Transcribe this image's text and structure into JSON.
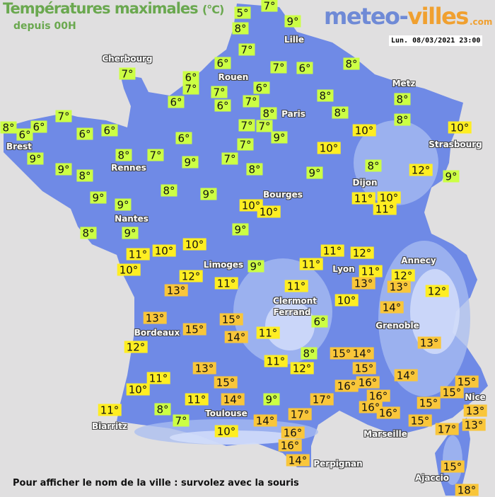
{
  "header": {
    "title": "Températures maximales",
    "title_unit": "(°C)",
    "subtitle": "depuis 00H",
    "logo_main": "meteo-",
    "logo_accent": "villes",
    "logo_tld": ".com",
    "datetime": "Lun. 08/03/2021 23:00"
  },
  "footer": "Pour afficher le nom de la ville : survolez avec la souris",
  "colors": {
    "sea": "#e0dfe0",
    "land": "#6f8ae6",
    "cold": "#ccff44",
    "mild": "#ffee22",
    "warm": "#f9c63a"
  },
  "cities": [
    "Cherbourg",
    "Lille",
    "Rouen",
    "Paris",
    "Metz",
    "Strasbourg",
    "Brest",
    "Rennes",
    "Nantes",
    "Dijon",
    "Bourges",
    "Limoges",
    "Lyon",
    "Annecy",
    "Clermont",
    "Ferrand",
    "Grenoble",
    "Bordeaux",
    "Toulouse",
    "Biarritz",
    "Marseille",
    "Nice",
    "Perpignan",
    "Ajaccio"
  ],
  "temperatures": [
    "5°",
    "7°",
    "8°",
    "9°",
    "7°",
    "7°",
    "6°",
    "8°",
    "6°",
    "6°",
    "7°",
    "6°",
    "7°",
    "6°",
    "7°",
    "6°",
    "8°",
    "7°",
    "7°",
    "9°",
    "7°",
    "7°",
    "8°",
    "8°",
    "8°",
    "10°",
    "10°",
    "9°",
    "8°",
    "11°",
    "10°",
    "11°",
    "12°",
    "9°",
    "10°",
    "8°",
    "8°",
    "7°",
    "7°",
    "8°",
    "6°",
    "6°",
    "6°",
    "6°",
    "6°",
    "9°",
    "9°",
    "8°",
    "8°",
    "7°",
    "9°",
    "8°",
    "9°",
    "9°",
    "9°",
    "9°",
    "8°",
    "10°",
    "10°",
    "9°",
    "10°",
    "10°",
    "11°",
    "10°",
    "12°",
    "13°",
    "9°",
    "11°",
    "11°",
    "11°",
    "12°",
    "11°",
    "13°",
    "12°",
    "13°",
    "12°",
    "11°",
    "10°",
    "14°",
    "6°",
    "13°",
    "13°",
    "15°",
    "15°",
    "14°",
    "11°",
    "12°",
    "13°",
    "8°",
    "11°",
    "12°",
    "15°",
    "14°",
    "15°",
    "14°",
    "11°",
    "10°",
    "15°",
    "16°",
    "16°",
    "9°",
    "17°",
    "15°",
    "15°",
    "13°",
    "11°",
    "14°",
    "8°",
    "7°",
    "11°",
    "15°",
    "16°",
    "16°",
    "16°",
    "17°",
    "14°",
    "15°",
    "13°",
    "17°",
    "10°",
    "16°",
    "16°",
    "14°",
    "15°",
    "18°"
  ]
}
